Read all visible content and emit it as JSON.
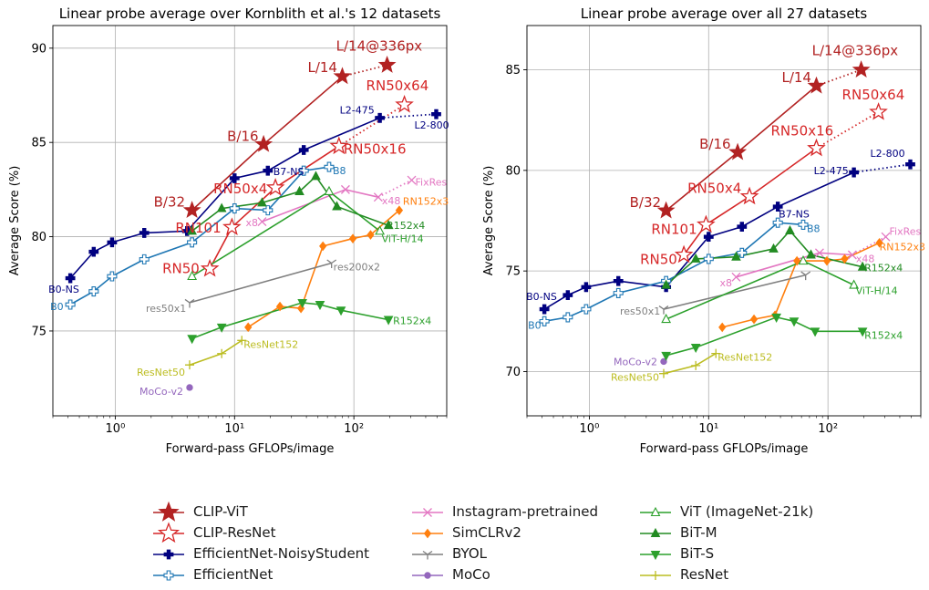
{
  "colors": {
    "clip_vit": "#b22222",
    "clip_resnet": "#d62728",
    "effnet_ns": "#000080",
    "effnet": "#1f77b4",
    "instagram": "#e377c2",
    "simclr": "#ff7f0e",
    "byol": "#7f7f7f",
    "moco": "#9467bd",
    "vit": "#2ca02c",
    "bitm": "#228b22",
    "bits": "#2ca02c",
    "resnet": "#bcbd22"
  },
  "legend": [
    {
      "label": "CLIP-ViT",
      "color": "#b22222",
      "marker": "star-filled",
      "line": true
    },
    {
      "label": "CLIP-ResNet",
      "color": "#d62728",
      "marker": "star-open",
      "line": true
    },
    {
      "label": "EfficientNet-NoisyStudent",
      "color": "#000080",
      "marker": "plus-filled",
      "line": true
    },
    {
      "label": "EfficientNet",
      "color": "#1f77b4",
      "marker": "plus-open",
      "line": true
    },
    {
      "label": "Instagram-pretrained",
      "color": "#e377c2",
      "marker": "x",
      "line": true
    },
    {
      "label": "SimCLRv2",
      "color": "#ff7f0e",
      "marker": "diamond",
      "line": true
    },
    {
      "label": "BYOL",
      "color": "#7f7f7f",
      "marker": "tri-y",
      "line": true
    },
    {
      "label": "MoCo",
      "color": "#9467bd",
      "marker": "circle",
      "line": true
    },
    {
      "label": "ViT (ImageNet-21k)",
      "color": "#2ca02c",
      "marker": "tri-up-open",
      "line": true
    },
    {
      "label": "BiT-M",
      "color": "#228b22",
      "marker": "tri-up",
      "line": true
    },
    {
      "label": "BiT-S",
      "color": "#2ca02c",
      "marker": "tri-down",
      "line": true
    },
    {
      "label": "ResNet",
      "color": "#bcbd22",
      "marker": "plus-thin",
      "line": true
    }
  ],
  "chart_data": [
    {
      "type": "line",
      "title": "Linear probe average over Kornblith et al.'s 12 datasets",
      "xlabel": "Forward-pass GFLOPs/image",
      "ylabel": "Average Score (%)",
      "xscale": "log",
      "xlim": [
        0.3,
        600
      ],
      "ylim": [
        70.5,
        91.2
      ],
      "xticks": [
        {
          "v": 1,
          "label": "10⁰"
        },
        {
          "v": 10,
          "label": "10¹"
        },
        {
          "v": 100,
          "label": "10²"
        }
      ],
      "yticks": [
        75,
        80,
        85,
        90
      ],
      "grid": true,
      "series": [
        {
          "name": "CLIP-ViT",
          "color": "#b22222",
          "marker": "star-filled",
          "x": [
            4.4,
            17.5,
            80,
            190
          ],
          "y": [
            81.4,
            84.9,
            88.5,
            89.1
          ],
          "dotted_last": true,
          "labels": [
            {
              "i": 0,
              "text": "B/32",
              "dx": -42,
              "dy": -4
            },
            {
              "i": 1,
              "text": "B/16",
              "dx": -40,
              "dy": -4
            },
            {
              "i": 2,
              "text": "L/14",
              "dx": -38,
              "dy": -5
            },
            {
              "i": 3,
              "text": "L/14@336px",
              "dx": -56,
              "dy": -16
            }
          ]
        },
        {
          "name": "CLIP-ResNet",
          "color": "#d62728",
          "marker": "star-open",
          "x": [
            6.2,
            9.5,
            22,
            75,
            265
          ],
          "y": [
            78.3,
            80.5,
            82.6,
            84.8,
            87.0
          ],
          "dotted_last": true,
          "labels": [
            {
              "i": 0,
              "text": "RN50",
              "dx": -52,
              "dy": 5
            },
            {
              "i": 1,
              "text": "RN101",
              "dx": -62,
              "dy": 6
            },
            {
              "i": 2,
              "text": "RN50x4",
              "dx": -68,
              "dy": 6
            },
            {
              "i": 3,
              "text": "RN50x16",
              "dx": 5,
              "dy": 8
            },
            {
              "i": 4,
              "text": "RN50x64",
              "dx": -42,
              "dy": -16
            }
          ]
        },
        {
          "name": "EfficientNet-NoisyStudent",
          "color": "#000080",
          "marker": "plus-filled",
          "x": [
            0.42,
            0.66,
            0.94,
            1.75,
            4.0,
            10.0,
            19,
            38,
            165,
            490
          ],
          "y": [
            77.8,
            79.2,
            79.7,
            80.2,
            80.3,
            83.1,
            83.5,
            84.6,
            86.3,
            86.5
          ],
          "dotted_last": true,
          "labels": [
            {
              "i": 0,
              "text": "B0-NS",
              "dx": -24,
              "dy": 16
            },
            {
              "i": 6,
              "text": "B7-NS",
              "dx": 6,
              "dy": 5
            },
            {
              "i": 8,
              "text": "L2-475",
              "dx": -44,
              "dy": -5
            },
            {
              "i": 9,
              "text": "L2-800",
              "dx": -24,
              "dy": 16
            }
          ]
        },
        {
          "name": "EfficientNet",
          "color": "#1f77b4",
          "marker": "plus-open",
          "x": [
            0.42,
            0.66,
            0.94,
            1.75,
            4.4,
            10.0,
            19,
            38,
            62
          ],
          "y": [
            76.4,
            77.1,
            77.9,
            78.8,
            79.7,
            81.5,
            81.4,
            83.5,
            83.7
          ],
          "labels": [
            {
              "i": 0,
              "text": "B0",
              "dx": -22,
              "dy": 6
            },
            {
              "i": 8,
              "text": "B8",
              "dx": 4,
              "dy": 8
            }
          ]
        },
        {
          "name": "Instagram-pretrained",
          "color": "#e377c2",
          "marker": "x",
          "x": [
            17,
            85,
            160,
            305
          ],
          "y": [
            80.8,
            82.5,
            82.1,
            83.0
          ],
          "dotted_last": true,
          "labels": [
            {
              "i": 0,
              "text": "x8",
              "dx": -18,
              "dy": 5
            },
            {
              "i": 2,
              "text": "x48",
              "dx": 4,
              "dy": 8
            },
            {
              "i": 3,
              "text": "FixRes",
              "dx": 4,
              "dy": 6
            }
          ]
        },
        {
          "name": "SimCLRv2",
          "color": "#ff7f0e",
          "marker": "diamond",
          "x": [
            13,
            24,
            36,
            55,
            98,
            138,
            240
          ],
          "y": [
            75.2,
            76.3,
            76.2,
            79.5,
            79.9,
            80.1,
            81.4
          ],
          "labels": [
            {
              "i": 6,
              "text": "RN152x3",
              "dx": 4,
              "dy": -6
            }
          ]
        },
        {
          "name": "BYOL",
          "color": "#7f7f7f",
          "marker": "tri-y",
          "x": [
            4.2,
            65
          ],
          "y": [
            76.5,
            78.6
          ],
          "labels": [
            {
              "i": 0,
              "text": "res50x1",
              "dx": -48,
              "dy": 10
            },
            {
              "i": 1,
              "text": "res200x2",
              "dx": 2,
              "dy": 8
            }
          ]
        },
        {
          "name": "MoCo",
          "color": "#9467bd",
          "marker": "circle",
          "x": [
            4.2
          ],
          "y": [
            72.0
          ],
          "labels": [
            {
              "i": 0,
              "text": "MoCo-v2",
              "dx": -55,
              "dy": 8
            }
          ]
        },
        {
          "name": "ViT (ImageNet-21k)",
          "color": "#2ca02c",
          "marker": "tri-up-open",
          "x": [
            4.4,
            62,
            165
          ],
          "y": [
            77.9,
            82.4,
            80.3
          ],
          "labels": [
            {
              "i": 2,
              "text": "ViT-H/14",
              "dx": 2,
              "dy": 12
            }
          ]
        },
        {
          "name": "BiT-M",
          "color": "#228b22",
          "marker": "tri-up",
          "x": [
            4.4,
            7.8,
            17,
            35,
            48,
            72,
            195
          ],
          "y": [
            80.3,
            81.5,
            81.8,
            82.4,
            83.2,
            81.6,
            80.6
          ],
          "labels": [
            {
              "i": 6,
              "text": "R152x4",
              "dx": -2,
              "dy": 4
            }
          ]
        },
        {
          "name": "BiT-S",
          "color": "#2ca02c",
          "marker": "tri-down",
          "x": [
            4.4,
            7.8,
            37,
            52,
            78,
            195
          ],
          "y": [
            74.6,
            75.2,
            76.5,
            76.4,
            76.1,
            75.6
          ],
          "labels": [
            {
              "i": 5,
              "text": "R152x4",
              "dx": 5,
              "dy": 5
            }
          ]
        },
        {
          "name": "ResNet",
          "color": "#bcbd22",
          "marker": "plus-thin",
          "x": [
            4.2,
            7.8,
            11.5
          ],
          "y": [
            73.2,
            73.8,
            74.5
          ],
          "labels": [
            {
              "i": 0,
              "text": "ResNet50",
              "dx": -58,
              "dy": 12
            },
            {
              "i": 2,
              "text": "ResNet152",
              "dx": 2,
              "dy": 8
            }
          ]
        }
      ]
    },
    {
      "type": "line",
      "title": "Linear probe average over all 27 datasets",
      "xlabel": "Forward-pass GFLOPs/image",
      "ylabel": "Average Score (%)",
      "xscale": "log",
      "xlim": [
        0.3,
        600
      ],
      "ylim": [
        67.8,
        87.2
      ],
      "xticks": [
        {
          "v": 1,
          "label": "10⁰"
        },
        {
          "v": 10,
          "label": "10¹"
        },
        {
          "v": 100,
          "label": "10²"
        }
      ],
      "yticks": [
        70,
        75,
        80,
        85
      ],
      "grid": true,
      "series": [
        {
          "name": "CLIP-ViT",
          "color": "#b22222",
          "marker": "star-filled",
          "x": [
            4.4,
            17.5,
            80,
            190
          ],
          "y": [
            78.0,
            80.9,
            84.2,
            85.0
          ],
          "dotted_last": true,
          "labels": [
            {
              "i": 0,
              "text": "B/32",
              "dx": -40,
              "dy": -4
            },
            {
              "i": 1,
              "text": "B/16",
              "dx": -42,
              "dy": -4
            },
            {
              "i": 2,
              "text": "L/14",
              "dx": -38,
              "dy": -4
            },
            {
              "i": 3,
              "text": "L/14@336px",
              "dx": -54,
              "dy": -16
            }
          ]
        },
        {
          "name": "CLIP-ResNet",
          "color": "#d62728",
          "marker": "star-open",
          "x": [
            6.2,
            9.5,
            22,
            80,
            265
          ],
          "y": [
            75.8,
            77.3,
            78.7,
            81.1,
            82.9
          ],
          "dotted_last": true,
          "labels": [
            {
              "i": 0,
              "text": "RN50",
              "dx": -48,
              "dy": 10
            },
            {
              "i": 1,
              "text": "RN101",
              "dx": -60,
              "dy": 10
            },
            {
              "i": 2,
              "text": "RN50x4",
              "dx": -68,
              "dy": -4
            },
            {
              "i": 3,
              "text": "RN50x16",
              "dx": -50,
              "dy": -14
            },
            {
              "i": 4,
              "text": "RN50x64",
              "dx": -40,
              "dy": -14
            }
          ]
        },
        {
          "name": "EfficientNet-NoisyStudent",
          "color": "#000080",
          "marker": "plus-filled",
          "x": [
            0.42,
            0.66,
            0.94,
            1.75,
            4.4,
            10.0,
            19,
            38,
            165,
            490
          ],
          "y": [
            73.1,
            73.8,
            74.2,
            74.5,
            74.2,
            76.7,
            77.2,
            78.2,
            79.9,
            80.3
          ],
          "dotted_last": true,
          "labels": [
            {
              "i": 0,
              "text": "B0-NS",
              "dx": -20,
              "dy": -10
            },
            {
              "i": 7,
              "text": "B7-NS",
              "dx": 1,
              "dy": 12
            },
            {
              "i": 8,
              "text": "L2-475",
              "dx": -44,
              "dy": 2
            },
            {
              "i": 9,
              "text": "L2-800",
              "dx": -44,
              "dy": -8
            }
          ]
        },
        {
          "name": "EfficientNet",
          "color": "#1f77b4",
          "marker": "plus-open",
          "x": [
            0.42,
            0.66,
            0.94,
            1.75,
            4.4,
            10.0,
            19,
            38,
            62
          ],
          "y": [
            72.5,
            72.7,
            73.1,
            73.9,
            74.5,
            75.6,
            75.9,
            77.4,
            77.3
          ],
          "labels": [
            {
              "i": 0,
              "text": "B0",
              "dx": -18,
              "dy": 8
            },
            {
              "i": 8,
              "text": "B8",
              "dx": 4,
              "dy": 8
            }
          ]
        },
        {
          "name": "Instagram-pretrained",
          "color": "#e377c2",
          "marker": "x",
          "x": [
            17,
            85,
            160,
            305
          ],
          "y": [
            74.7,
            75.9,
            75.8,
            76.7
          ],
          "dotted_last": true,
          "labels": [
            {
              "i": 0,
              "text": "x8",
              "dx": -18,
              "dy": 10
            },
            {
              "i": 2,
              "text": "x48",
              "dx": 4,
              "dy": 8
            },
            {
              "i": 3,
              "text": "FixRes",
              "dx": 4,
              "dy": -2
            }
          ]
        },
        {
          "name": "SimCLRv2",
          "color": "#ff7f0e",
          "marker": "diamond",
          "x": [
            13,
            24,
            36,
            55,
            98,
            138,
            270
          ],
          "y": [
            72.2,
            72.6,
            72.8,
            75.5,
            75.5,
            75.6,
            76.4
          ],
          "labels": [
            {
              "i": 6,
              "text": "RN152x3",
              "dx": 0,
              "dy": 8
            }
          ]
        },
        {
          "name": "BYOL",
          "color": "#7f7f7f",
          "marker": "tri-y",
          "x": [
            4.2,
            65
          ],
          "y": [
            73.1,
            74.8
          ],
          "labels": [
            {
              "i": 0,
              "text": "res50x1",
              "dx": -48,
              "dy": 6
            }
          ]
        },
        {
          "name": "MoCo",
          "color": "#9467bd",
          "marker": "circle",
          "x": [
            4.2
          ],
          "y": [
            70.5
          ],
          "labels": [
            {
              "i": 0,
              "text": "MoCo-v2",
              "dx": -55,
              "dy": 4
            }
          ]
        },
        {
          "name": "ViT (ImageNet-21k)",
          "color": "#2ca02c",
          "marker": "tri-up-open",
          "x": [
            4.4,
            62,
            165
          ],
          "y": [
            72.6,
            75.5,
            74.3
          ],
          "labels": [
            {
              "i": 2,
              "text": "ViT-H/14",
              "dx": 2,
              "dy": 10
            }
          ]
        },
        {
          "name": "BiT-M",
          "color": "#228b22",
          "marker": "tri-up",
          "x": [
            4.4,
            7.8,
            17,
            35,
            48,
            72,
            195
          ],
          "y": [
            74.3,
            75.6,
            75.7,
            76.1,
            77.0,
            75.8,
            75.2
          ],
          "labels": [
            {
              "i": 6,
              "text": "R152x4",
              "dx": 2,
              "dy": 5
            }
          ]
        },
        {
          "name": "BiT-S",
          "color": "#2ca02c",
          "marker": "tri-down",
          "x": [
            4.4,
            7.8,
            37,
            52,
            78,
            195
          ],
          "y": [
            70.8,
            71.2,
            72.7,
            72.5,
            72.0,
            72.0
          ],
          "labels": [
            {
              "i": 5,
              "text": "R152x4",
              "dx": 2,
              "dy": 8
            }
          ]
        },
        {
          "name": "ResNet",
          "color": "#bcbd22",
          "marker": "plus-thin",
          "x": [
            4.2,
            7.8,
            11.5
          ],
          "y": [
            69.9,
            70.3,
            70.9
          ],
          "labels": [
            {
              "i": 0,
              "text": "ResNet50",
              "dx": -58,
              "dy": 8
            },
            {
              "i": 2,
              "text": "ResNet152",
              "dx": 2,
              "dy": 8
            }
          ]
        }
      ]
    }
  ]
}
